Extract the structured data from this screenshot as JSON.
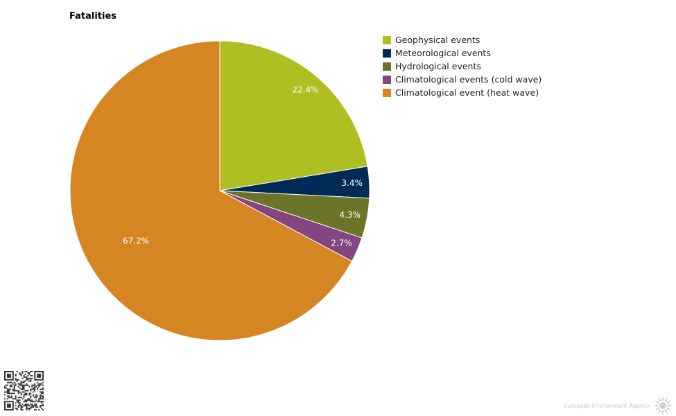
{
  "chart_data": {
    "type": "pie",
    "title": "Fatalities",
    "legend_position": "top-right",
    "slices": [
      {
        "name": "Geophysical events",
        "value": 22.4,
        "label": "22.4%",
        "color": "#afbf21"
      },
      {
        "name": "Meteorological events",
        "value": 3.4,
        "label": "3.4%",
        "color": "#002b57"
      },
      {
        "name": "Hydrological events",
        "value": 4.3,
        "label": "4.3%",
        "color": "#6b7429"
      },
      {
        "name": "Climatological events (cold wave)",
        "value": 2.7,
        "label": "2.7%",
        "color": "#83467f"
      },
      {
        "name": "Climatological event (heat wave)",
        "value": 67.2,
        "label": "67.2%",
        "color": "#d68523"
      }
    ]
  },
  "branding": {
    "org_name": "European Environment Agency",
    "qr_icon": "qr-code-icon",
    "logo_icon": "eea-sun-logo-icon"
  }
}
